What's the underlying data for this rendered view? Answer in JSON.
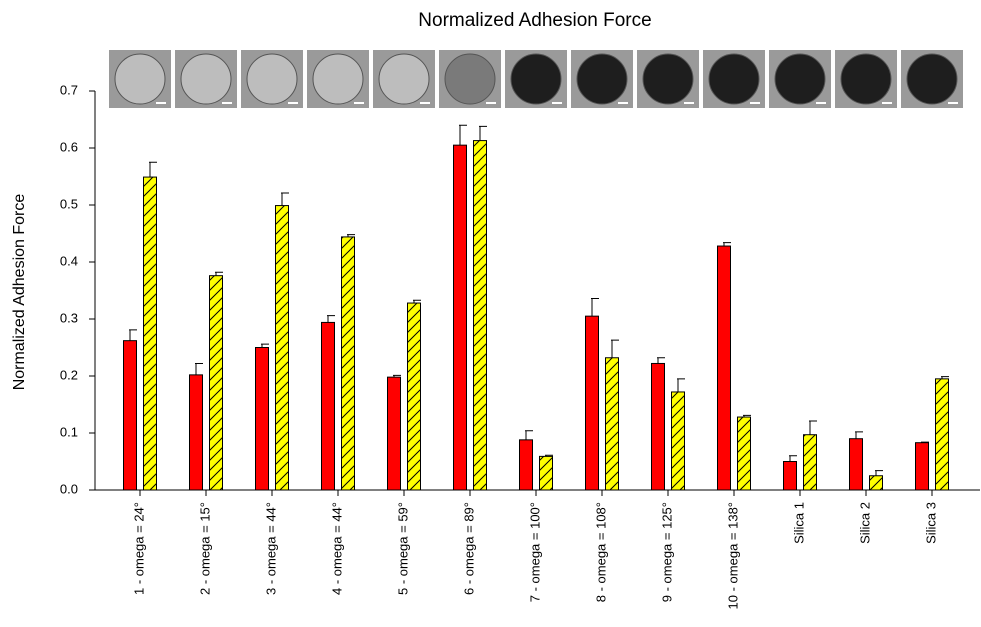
{
  "chart_data": {
    "type": "bar",
    "title": "Normalized Adhesion Force",
    "y_label": "Normalized Adhesion Force",
    "categories": [
      "1 - omega = 24°",
      "2 - omega = 15°",
      "3 - omega = 44°",
      "4 - omega = 44°",
      "5 - omega = 59°",
      "6 - omega = 89°",
      "7 - omega = 100°",
      "8 - omega = 108°",
      "9 - omega = 125°",
      "10 - omega = 138°",
      "Silica 1",
      "Silica 2",
      "Silica 3"
    ],
    "series": [
      {
        "color": "#ff0000",
        "hatch": false,
        "values": [
          0.262,
          0.202,
          0.25,
          0.294,
          0.198,
          0.605,
          0.088,
          0.305,
          0.222,
          0.428,
          0.05,
          0.09,
          0.083
        ],
        "errors": [
          0.019,
          0.02,
          0.006,
          0.012,
          0.003,
          0.035,
          0.016,
          0.031,
          0.01,
          0.006,
          0.01,
          0.012,
          0.001
        ]
      },
      {
        "color": "#ffff00",
        "hatch": true,
        "values": [
          0.549,
          0.376,
          0.499,
          0.444,
          0.328,
          0.613,
          0.059,
          0.232,
          0.172,
          0.128,
          0.097,
          0.025,
          0.195
        ],
        "errors": [
          0.026,
          0.006,
          0.022,
          0.004,
          0.005,
          0.025,
          0.002,
          0.031,
          0.023,
          0.003,
          0.024,
          0.009,
          0.004
        ]
      }
    ],
    "ylim": [
      0,
      0.7
    ],
    "yticks": [
      {
        "value": 0,
        "label": "0.0"
      },
      0.1,
      0.2,
      0.3,
      0.4,
      0.5,
      0.6,
      0.7
    ]
  }
}
